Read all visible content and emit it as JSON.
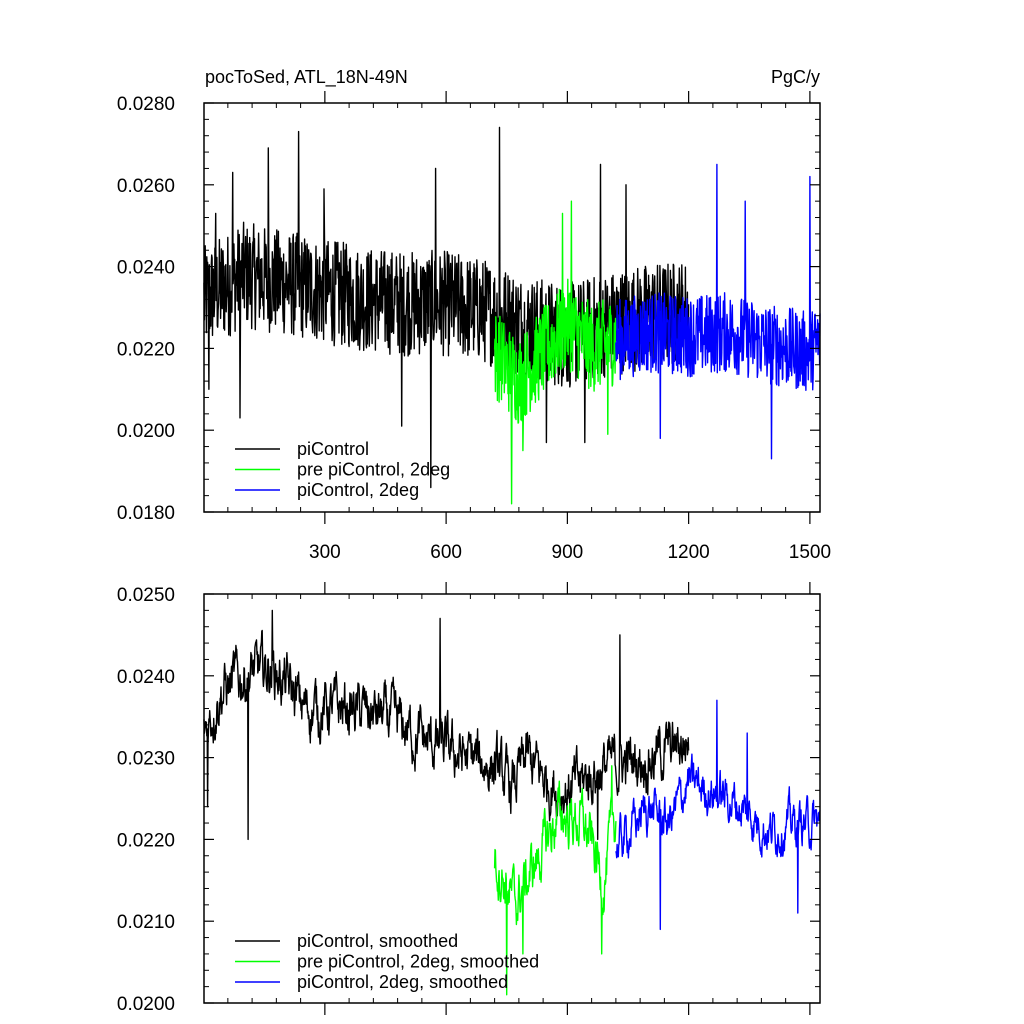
{
  "chart_data": [
    {
      "type": "line",
      "title_left": "pocToSed, ATL_18N-49N",
      "title_right": "PgC/y",
      "xlim": [
        1,
        1525
      ],
      "ylim": [
        0.018,
        0.028
      ],
      "x_ticks": [
        300,
        600,
        900,
        1200,
        1500
      ],
      "y_ticks": [
        "0.0180",
        "0.0200",
        "0.0220",
        "0.0240",
        "0.0260",
        "0.0280"
      ],
      "legend_position": "bottom-left",
      "series": [
        {
          "name": "piControl",
          "color": "#000000",
          "x_start": 1,
          "x_end": 1200,
          "points": [
            [
              1,
              0.0232
            ],
            [
              100,
              0.0238
            ],
            [
              200,
              0.0236
            ],
            [
              300,
              0.0234
            ],
            [
              400,
              0.0232
            ],
            [
              500,
              0.0231
            ],
            [
              600,
              0.0231
            ],
            [
              700,
              0.0229
            ],
            [
              800,
              0.0225
            ],
            [
              900,
              0.0223
            ],
            [
              1000,
              0.0226
            ],
            [
              1100,
              0.0228
            ],
            [
              1200,
              0.0229
            ]
          ],
          "amplitude": 0.0013,
          "spikes": [
            [
              13,
              0.021
            ],
            [
              30,
              0.0253
            ],
            [
              72,
              0.0263
            ],
            [
              90,
              0.0203
            ],
            [
              160,
              0.0269
            ],
            [
              235,
              0.0273
            ],
            [
              298,
              0.0259
            ],
            [
              490,
              0.0201
            ],
            [
              562,
              0.0186
            ],
            [
              574,
              0.0264
            ],
            [
              732,
              0.0274
            ],
            [
              795,
              0.0209
            ],
            [
              848,
              0.0197
            ],
            [
              943,
              0.0197
            ],
            [
              982,
              0.0265
            ],
            [
              1045,
              0.026
            ]
          ]
        },
        {
          "name": "pre piControl, 2deg",
          "color": "#00ff00",
          "x_start": 720,
          "x_end": 1020,
          "points": [
            [
              720,
              0.0219
            ],
            [
              780,
              0.0212
            ],
            [
              840,
              0.0219
            ],
            [
              900,
              0.0226
            ],
            [
              960,
              0.022
            ],
            [
              1020,
              0.0222
            ]
          ],
          "amplitude": 0.0011,
          "spikes": [
            [
              762,
              0.0182
            ],
            [
              790,
              0.0195
            ],
            [
              888,
              0.0253
            ],
            [
              910,
              0.0256
            ],
            [
              1000,
              0.0199
            ]
          ]
        },
        {
          "name": "piControl, 2deg",
          "color": "#0000ff",
          "x_start": 1020,
          "x_end": 1525,
          "points": [
            [
              1020,
              0.0222
            ],
            [
              1100,
              0.0224
            ],
            [
              1200,
              0.0223
            ],
            [
              1300,
              0.0224
            ],
            [
              1400,
              0.0221
            ],
            [
              1500,
              0.0219
            ],
            [
              1525,
              0.0222
            ]
          ],
          "amplitude": 0.001,
          "spikes": [
            [
              1130,
              0.0198
            ],
            [
              1270,
              0.0265
            ],
            [
              1340,
              0.0256
            ],
            [
              1405,
              0.0193
            ],
            [
              1500,
              0.0262
            ]
          ]
        }
      ]
    },
    {
      "type": "line",
      "xlim": [
        1,
        1525
      ],
      "ylim": [
        0.02,
        0.025
      ],
      "y_ticks": [
        "0.0200",
        "0.0210",
        "0.0220",
        "0.0230",
        "0.0240",
        "0.0250"
      ],
      "legend_position": "bottom-left",
      "series": [
        {
          "name": "piControl, smoothed",
          "color": "#000000",
          "x_start": 1,
          "x_end": 1200,
          "points": [
            [
              1,
              0.0233
            ],
            [
              40,
              0.0238
            ],
            [
              100,
              0.024
            ],
            [
              170,
              0.0241
            ],
            [
              250,
              0.0236
            ],
            [
              350,
              0.0236
            ],
            [
              450,
              0.0235
            ],
            [
              550,
              0.0232
            ],
            [
              650,
              0.023
            ],
            [
              720,
              0.0229
            ],
            [
              760,
              0.0226
            ],
            [
              800,
              0.023
            ],
            [
              850,
              0.0227
            ],
            [
              900,
              0.0226
            ],
            [
              1000,
              0.0229
            ],
            [
              1100,
              0.023
            ],
            [
              1200,
              0.0232
            ]
          ],
          "amplitude": 0.0005,
          "spikes": [
            [
              10,
              0.0224
            ],
            [
              110,
              0.0247
            ],
            [
              170,
              0.0248
            ],
            [
              110,
              0.022
            ],
            [
              585,
              0.0247
            ],
            [
              975,
              0.022
            ],
            [
              1030,
              0.0245
            ]
          ]
        },
        {
          "name": "pre piControl, 2deg, smoothed",
          "color": "#00ff00",
          "x_start": 720,
          "x_end": 1020,
          "points": [
            [
              720,
              0.0218
            ],
            [
              770,
              0.0212
            ],
            [
              820,
              0.0217
            ],
            [
              880,
              0.0223
            ],
            [
              940,
              0.0222
            ],
            [
              990,
              0.0215
            ],
            [
              1020,
              0.0223
            ]
          ],
          "amplitude": 0.0005,
          "spikes": [
            [
              750,
              0.0201
            ],
            [
              790,
              0.0206
            ],
            [
              985,
              0.0206
            ],
            [
              1010,
              0.0229
            ]
          ]
        },
        {
          "name": "piControl, 2deg, smoothed",
          "color": "#0000ff",
          "x_start": 1020,
          "x_end": 1525,
          "points": [
            [
              1020,
              0.0219
            ],
            [
              1100,
              0.0224
            ],
            [
              1150,
              0.0222
            ],
            [
              1200,
              0.0227
            ],
            [
              1300,
              0.0225
            ],
            [
              1400,
              0.0221
            ],
            [
              1450,
              0.0222
            ],
            [
              1525,
              0.0222
            ]
          ],
          "amplitude": 0.0004,
          "spikes": [
            [
              1130,
              0.0209
            ],
            [
              1270,
              0.0237
            ],
            [
              1345,
              0.0233
            ],
            [
              1470,
              0.0211
            ]
          ]
        }
      ]
    }
  ]
}
